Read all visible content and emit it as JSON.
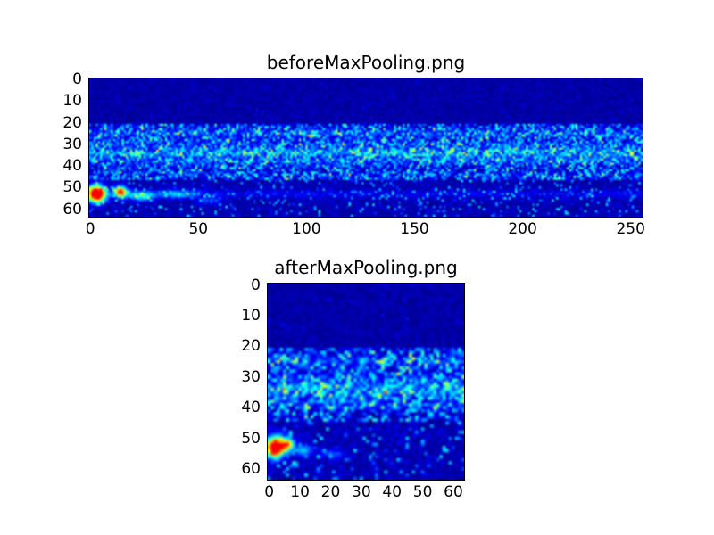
{
  "figure": {
    "type": "matplotlib-figure",
    "background_color": "#ffffff",
    "frame_color": "#000000"
  },
  "chart_data": [
    {
      "type": "heatmap",
      "title": "beforeMaxPooling.png",
      "xlabel": "",
      "ylabel": "",
      "x_ticks": [
        "0",
        "50",
        "100",
        "150",
        "200",
        "250"
      ],
      "x_tick_values": [
        0,
        50,
        100,
        150,
        200,
        250
      ],
      "y_ticks": [
        "0",
        "10",
        "20",
        "30",
        "40",
        "50",
        "60"
      ],
      "y_tick_values": [
        0,
        10,
        20,
        30,
        40,
        50,
        60
      ],
      "x_range": [
        0,
        255
      ],
      "y_range": [
        0,
        63
      ],
      "grid": {
        "rows": 64,
        "cols": 256
      },
      "colormap": "jet",
      "colors": {
        "low": "#000084",
        "mid": "#00ffff",
        "high": "#ff0000"
      },
      "summary": "Dark navy feature map 64x256; speckled light-blue band across rows 22-46 with brighter cyan streak near row 34; intense red/yellow hotspot near rows 50-56 cols 0-16 with fading cyan-green trail to about col 60; sparse cyan specks along bottom rows.",
      "seed": 42,
      "regions": [
        {
          "rows": [
            0,
            20
          ],
          "base": 0.02,
          "noise": 0.05,
          "speckle": 0.08,
          "speckle_p": 0.02
        },
        {
          "rows": [
            21,
            46
          ],
          "base": 0.03,
          "noise": 0.22,
          "speckle": 0.3,
          "speckle_p": 0.22,
          "col_wave": {
            "period": 9,
            "amp": 0.3
          }
        },
        {
          "rows": [
            47,
            63
          ],
          "base": 0.02,
          "noise": 0.08,
          "speckle": 0.3,
          "speckle_p": 0.09
        }
      ],
      "bright_rows": [
        {
          "row": 25,
          "amp": 0.13,
          "sigma": 1.5
        },
        {
          "row": 30,
          "amp": 0.1,
          "sigma": 1.2
        },
        {
          "row": 34,
          "amp": 0.26,
          "sigma": 1.7
        },
        {
          "row": 38,
          "amp": 0.12,
          "sigma": 1.2
        },
        {
          "row": 44,
          "amp": 0.07,
          "sigma": 1.0
        },
        {
          "row": 53,
          "amp": 0.1,
          "sigma": 1.2
        }
      ],
      "blobs": [
        {
          "row": 53,
          "col": 3,
          "amp": 1.1,
          "sr": 2.6,
          "sc": 2.8
        },
        {
          "row": 52,
          "col": 14,
          "amp": 0.8,
          "sr": 1.7,
          "sc": 2.0
        },
        {
          "row": 54,
          "col": 24,
          "amp": 0.35,
          "sr": 1.5,
          "sc": 4.0
        },
        {
          "row": 53,
          "col": 40,
          "amp": 0.22,
          "sr": 1.3,
          "sc": 6.0
        },
        {
          "row": 56,
          "col": 55,
          "amp": 0.15,
          "sr": 1.2,
          "sc": 4.0
        }
      ]
    },
    {
      "type": "heatmap",
      "title": "afterMaxPooling.png",
      "xlabel": "",
      "ylabel": "",
      "x_ticks": [
        "0",
        "10",
        "20",
        "30",
        "40",
        "50",
        "60"
      ],
      "x_tick_values": [
        0,
        10,
        20,
        30,
        40,
        50,
        60
      ],
      "y_ticks": [
        "0",
        "10",
        "20",
        "30",
        "40",
        "50",
        "60"
      ],
      "y_tick_values": [
        0,
        10,
        20,
        30,
        40,
        50,
        60
      ],
      "x_range": [
        0,
        63
      ],
      "y_range": [
        0,
        63
      ],
      "grid": {
        "rows": 64,
        "cols": 64
      },
      "colormap": "jet",
      "colors": {
        "low": "#000084",
        "mid": "#00ffff",
        "high": "#ff0000"
      },
      "summary": "Dark navy feature map 64x64 after max pooling; speckled light-blue band rows 22-44 with brighter cyan streak near row 34; compact red/yellow hotspot near rows 50-56 cols 0-8 with short cyan trail; sparse cyan specks along bottom rows.",
      "seed": 7,
      "regions": [
        {
          "rows": [
            0,
            20
          ],
          "base": 0.02,
          "noise": 0.05,
          "speckle": 0.08,
          "speckle_p": 0.02
        },
        {
          "rows": [
            21,
            44
          ],
          "base": 0.03,
          "noise": 0.22,
          "speckle": 0.3,
          "speckle_p": 0.22,
          "col_wave": {
            "period": 7,
            "amp": 0.3
          }
        },
        {
          "rows": [
            45,
            63
          ],
          "base": 0.02,
          "noise": 0.09,
          "speckle": 0.3,
          "speckle_p": 0.1
        }
      ],
      "bright_rows": [
        {
          "row": 25,
          "amp": 0.14,
          "sigma": 1.4
        },
        {
          "row": 30,
          "amp": 0.1,
          "sigma": 1.2
        },
        {
          "row": 34,
          "amp": 0.28,
          "sigma": 1.7
        },
        {
          "row": 39,
          "amp": 0.12,
          "sigma": 1.2
        }
      ],
      "blobs": [
        {
          "row": 53,
          "col": 2,
          "amp": 1.1,
          "sr": 2.3,
          "sc": 1.9
        },
        {
          "row": 52,
          "col": 6,
          "amp": 0.65,
          "sr": 1.5,
          "sc": 1.4
        },
        {
          "row": 54,
          "col": 11,
          "amp": 0.3,
          "sr": 1.2,
          "sc": 2.0
        },
        {
          "row": 55,
          "col": 20,
          "amp": 0.15,
          "sr": 1.0,
          "sc": 3.0
        }
      ]
    }
  ]
}
